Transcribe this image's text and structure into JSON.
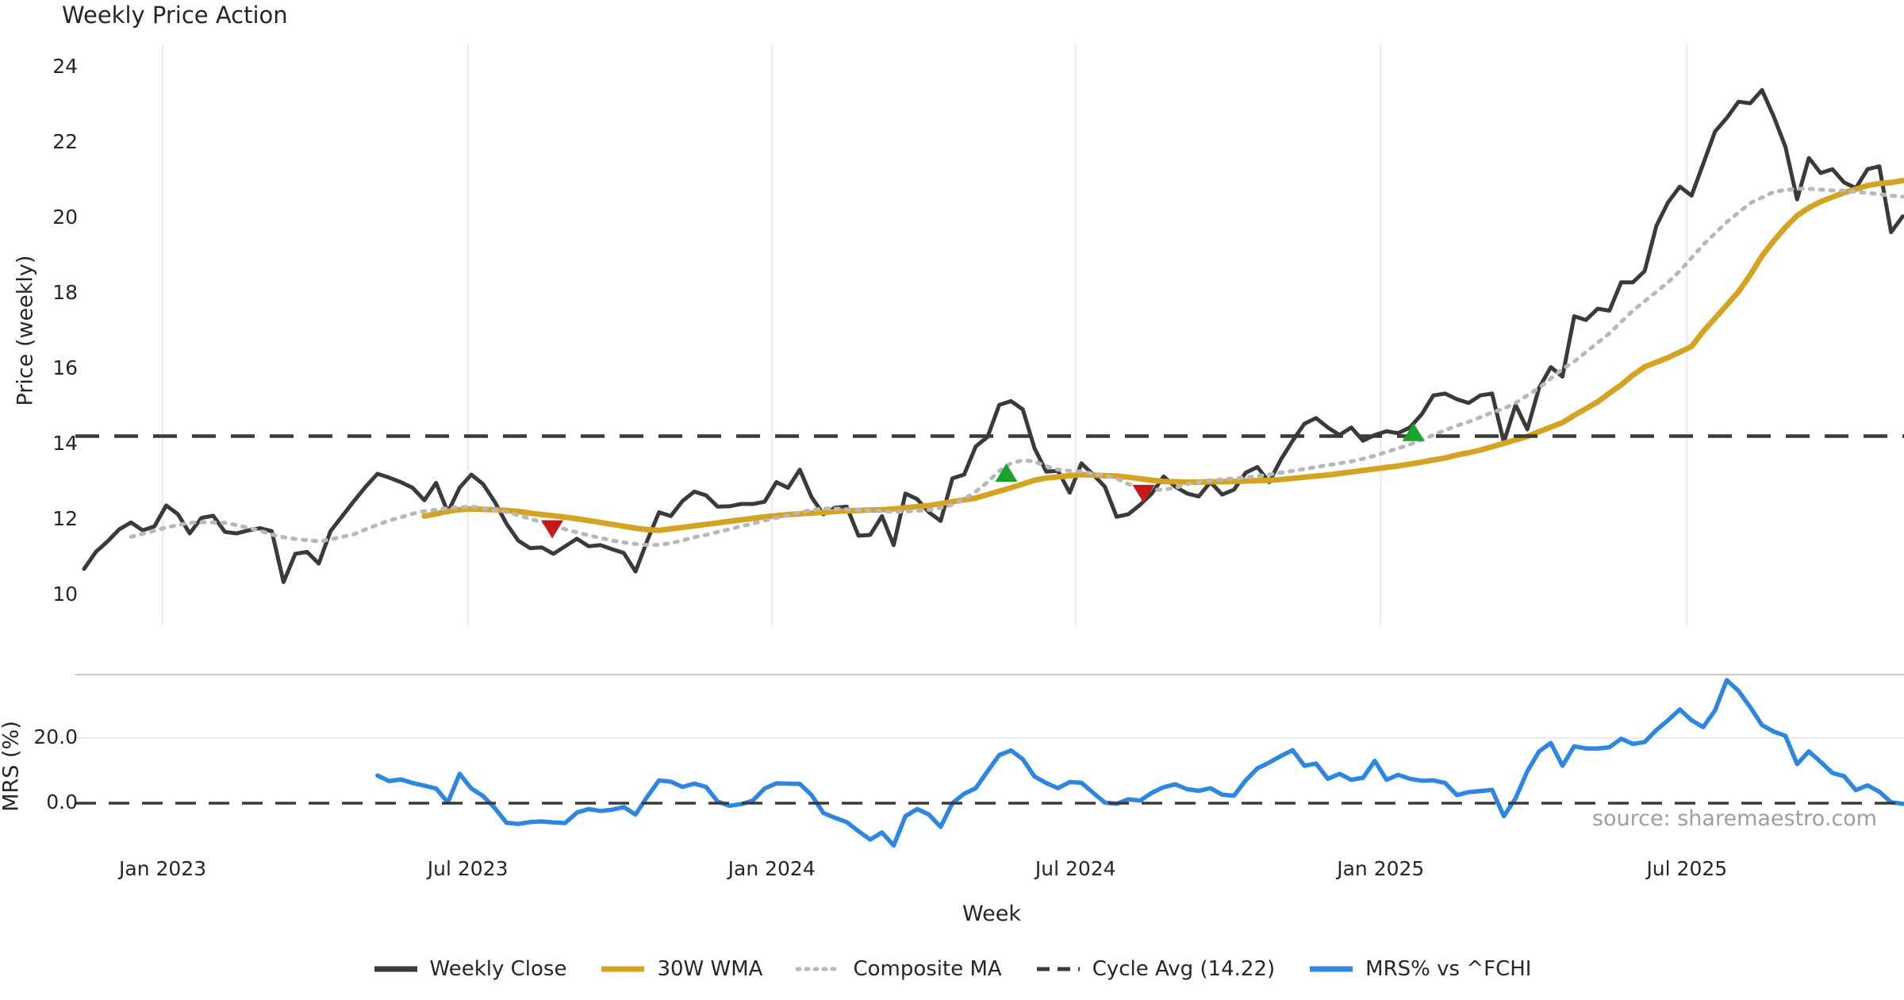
{
  "title": "Weekly Price Action",
  "source": "source: sharemaestro.com",
  "legend": [
    {
      "label": "Weekly Close",
      "color": "#3a3a3a",
      "style": "solid"
    },
    {
      "label": "30W WMA",
      "color": "#d5a322",
      "style": "solid"
    },
    {
      "label": "Composite MA",
      "color": "#b8b8b8",
      "style": "dotted"
    },
    {
      "label": "Cycle Avg (14.22)",
      "color": "#3a3a3a",
      "style": "dashed"
    },
    {
      "label": "MRS% vs ^FCHI",
      "color": "#2d87e2",
      "style": "solid"
    }
  ],
  "chart_data": {
    "type": "line",
    "n_weeks": 156,
    "x_axis": {
      "label": "Week",
      "ticks": [
        {
          "label": "Jan 2023",
          "week": 6.7
        },
        {
          "label": "Jul 2023",
          "week": 32.7
        },
        {
          "label": "Jan 2024",
          "week": 58.6
        },
        {
          "label": "Jul 2024",
          "week": 84.5
        },
        {
          "label": "Jan 2025",
          "week": 110.5
        },
        {
          "label": "Jul 2025",
          "week": 136.6
        }
      ]
    },
    "price_axis": {
      "label": "Price (weekly)",
      "ticks": [
        24,
        22,
        20,
        18,
        16,
        14,
        12,
        10
      ],
      "range": [
        9.2,
        24.6
      ]
    },
    "mrs_axis": {
      "label": "MRS (%)",
      "ticks": [
        {
          "label": "20.0",
          "value": 20
        },
        {
          "label": "0.0",
          "value": 0
        }
      ],
      "range": [
        -16,
        40
      ]
    },
    "cycle_avg": 14.22,
    "series": [
      {
        "name": "Weekly Close",
        "panel": "price",
        "style": "solid",
        "color": "#3a3a3a",
        "width": 5,
        "start": 0,
        "values": [
          10.7,
          11.15,
          11.43,
          11.75,
          11.93,
          11.72,
          11.83,
          12.38,
          12.15,
          11.64,
          12.05,
          12.11,
          11.68,
          11.64,
          11.72,
          11.78,
          11.7,
          10.35,
          11.1,
          11.15,
          10.84,
          11.7,
          12.1,
          12.5,
          12.88,
          13.22,
          13.12,
          13.0,
          12.85,
          12.52,
          12.98,
          12.2,
          12.85,
          13.2,
          12.95,
          12.48,
          11.9,
          11.45,
          11.25,
          11.27,
          11.1,
          11.3,
          11.5,
          11.3,
          11.33,
          11.22,
          11.12,
          10.63,
          11.45,
          12.2,
          12.1,
          12.5,
          12.75,
          12.65,
          12.35,
          12.36,
          12.42,
          12.42,
          12.48,
          13.0,
          12.85,
          13.33,
          12.6,
          12.15,
          12.32,
          12.35,
          11.58,
          11.6,
          12.1,
          11.33,
          12.7,
          12.55,
          12.2,
          11.97,
          13.1,
          13.2,
          13.95,
          14.2,
          15.05,
          15.15,
          14.93,
          13.9,
          13.28,
          13.3,
          12.72,
          13.5,
          13.2,
          12.88,
          12.08,
          12.15,
          12.4,
          12.7,
          13.15,
          12.88,
          12.7,
          12.62,
          13.0,
          12.67,
          12.8,
          13.25,
          13.4,
          13.0,
          13.6,
          14.1,
          14.55,
          14.7,
          14.45,
          14.25,
          14.45,
          14.1,
          14.25,
          14.35,
          14.3,
          14.45,
          14.8,
          15.3,
          15.35,
          15.2,
          15.1,
          15.3,
          15.35,
          14.06,
          15.05,
          14.4,
          15.5,
          16.05,
          15.8,
          17.4,
          17.3,
          17.6,
          17.55,
          18.3,
          18.3,
          18.6,
          19.8,
          20.42,
          20.84,
          20.6,
          21.45,
          22.3,
          22.66,
          23.09,
          23.05,
          23.4,
          22.7,
          21.9,
          20.5,
          21.6,
          21.2,
          21.3,
          20.95,
          20.8,
          21.3,
          21.38,
          19.63,
          20.05
        ]
      },
      {
        "name": "30W WMA",
        "panel": "price",
        "style": "solid",
        "color": "#d5a322",
        "width": 7,
        "start": 29,
        "values": [
          12.1,
          12.16,
          12.23,
          12.27,
          12.29,
          12.28,
          12.27,
          12.25,
          12.22,
          12.18,
          12.14,
          12.11,
          12.07,
          12.03,
          11.98,
          11.93,
          11.88,
          11.83,
          11.78,
          11.74,
          11.72,
          11.76,
          11.8,
          11.84,
          11.88,
          11.92,
          11.96,
          12.0,
          12.04,
          12.08,
          12.11,
          12.14,
          12.16,
          12.18,
          12.2,
          12.22,
          12.24,
          12.25,
          12.26,
          12.27,
          12.29,
          12.32,
          12.35,
          12.38,
          12.43,
          12.48,
          12.53,
          12.58,
          12.67,
          12.76,
          12.85,
          12.95,
          13.05,
          13.11,
          13.14,
          13.17,
          13.2,
          13.19,
          13.17,
          13.16,
          13.13,
          13.09,
          13.05,
          13.02,
          13.01,
          13.0,
          13.0,
          13.01,
          13.01,
          13.02,
          13.03,
          13.04,
          13.05,
          13.07,
          13.1,
          13.13,
          13.16,
          13.19,
          13.23,
          13.27,
          13.31,
          13.35,
          13.39,
          13.43,
          13.48,
          13.53,
          13.59,
          13.64,
          13.72,
          13.78,
          13.85,
          13.94,
          14.03,
          14.12,
          14.21,
          14.34,
          14.46,
          14.58,
          14.77,
          14.95,
          15.13,
          15.36,
          15.58,
          15.84,
          16.06,
          16.18,
          16.3,
          16.45,
          16.6,
          17.0,
          17.35,
          17.7,
          18.05,
          18.5,
          19.0,
          19.4,
          19.76,
          20.07,
          20.28,
          20.44,
          20.56,
          20.68,
          20.77,
          20.87,
          20.92,
          20.95,
          21.0
        ]
      },
      {
        "name": "Composite MA",
        "panel": "price",
        "style": "dotted",
        "color": "#b8b8b8",
        "width": 5,
        "start": 4,
        "values": [
          11.55,
          11.63,
          11.71,
          11.8,
          11.86,
          11.92,
          11.94,
          11.93,
          11.92,
          11.86,
          11.79,
          11.71,
          11.61,
          11.54,
          11.49,
          11.46,
          11.43,
          11.48,
          11.55,
          11.62,
          11.75,
          11.87,
          11.98,
          12.07,
          12.16,
          12.23,
          12.27,
          12.31,
          12.33,
          12.35,
          12.31,
          12.26,
          12.21,
          12.12,
          12.03,
          11.94,
          11.85,
          11.75,
          11.67,
          11.59,
          11.52,
          11.45,
          11.4,
          11.36,
          11.33,
          11.34,
          11.38,
          11.45,
          11.54,
          11.6,
          11.68,
          11.75,
          11.83,
          11.9,
          11.98,
          12.05,
          12.12,
          12.2,
          12.26,
          12.3,
          12.3,
          12.28,
          12.26,
          12.25,
          12.23,
          12.21,
          12.22,
          12.24,
          12.26,
          12.32,
          12.4,
          12.55,
          12.75,
          13.0,
          13.3,
          13.5,
          13.58,
          13.55,
          13.42,
          13.33,
          13.3,
          13.28,
          13.22,
          13.18,
          13.1,
          12.95,
          12.85,
          12.8,
          12.8,
          12.85,
          12.95,
          13.0,
          13.05,
          13.07,
          13.1,
          13.12,
          13.16,
          13.2,
          13.25,
          13.3,
          13.35,
          13.4,
          13.45,
          13.5,
          13.55,
          13.62,
          13.7,
          13.8,
          13.9,
          14.0,
          14.12,
          14.25,
          14.38,
          14.5,
          14.6,
          14.72,
          14.85,
          14.95,
          15.1,
          15.3,
          15.5,
          15.75,
          16.0,
          16.2,
          16.45,
          16.7,
          16.95,
          17.25,
          17.55,
          17.8,
          18.05,
          18.3,
          18.6,
          18.95,
          19.3,
          19.6,
          19.9,
          20.15,
          20.4,
          20.55,
          20.7,
          20.75,
          20.78,
          20.78,
          20.76,
          20.74,
          20.73,
          20.7,
          20.67,
          20.64,
          20.6,
          20.57
        ]
      },
      {
        "name": "Cycle Avg (14.22)",
        "panel": "price",
        "style": "dashed",
        "color": "#3a3a3a",
        "width": 4.5,
        "constant": 14.22
      },
      {
        "name": "MRS% vs ^FCHI",
        "panel": "mrs",
        "style": "solid",
        "color": "#2d87e2",
        "width": 5.5,
        "start": 25,
        "values": [
          8.5,
          6.8,
          7.3,
          6.2,
          5.4,
          4.5,
          0.2,
          9.0,
          4.5,
          2.2,
          -1.5,
          -6.0,
          -6.4,
          -5.8,
          -5.6,
          -5.9,
          -6.1,
          -2.9,
          -1.8,
          -2.4,
          -2.0,
          -1.2,
          -3.5,
          2.0,
          7.0,
          6.6,
          5.0,
          6.0,
          5.0,
          0.5,
          -0.8,
          -0.3,
          0.8,
          4.5,
          6.1,
          6.0,
          5.9,
          2.5,
          -3.0,
          -4.5,
          -5.8,
          -8.6,
          -11.2,
          -9.0,
          -13.0,
          -4.0,
          -1.8,
          -3.5,
          -7.3,
          0.0,
          2.9,
          4.6,
          9.8,
          14.8,
          16.2,
          13.5,
          8.2,
          6.2,
          4.6,
          6.5,
          6.3,
          3.2,
          0.2,
          -0.2,
          1.2,
          0.8,
          3.2,
          4.9,
          5.8,
          4.3,
          3.8,
          4.6,
          2.6,
          2.3,
          7.0,
          10.7,
          12.5,
          14.5,
          16.3,
          11.5,
          12.2,
          7.5,
          9.0,
          7.2,
          7.8,
          13.0,
          7.2,
          8.7,
          7.5,
          6.9,
          7.0,
          6.2,
          2.5,
          3.4,
          3.7,
          4.1,
          -4.0,
          1.5,
          9.8,
          15.9,
          18.5,
          11.5,
          17.5,
          16.8,
          16.8,
          17.2,
          19.8,
          18.2,
          18.8,
          22.5,
          25.5,
          28.8,
          25.5,
          23.4,
          28.5,
          37.8,
          34.5,
          29.5,
          24.0,
          22.0,
          20.7,
          12.0,
          15.9,
          12.7,
          9.3,
          8.3,
          4.0,
          5.5,
          3.5,
          0.3,
          -0.2
        ]
      }
    ],
    "signals": {
      "buy": {
        "color": "#1aa22c",
        "shape": "triangle-up",
        "points": [
          {
            "week": 78.6,
            "value": 13.2
          },
          {
            "week": 113.3,
            "value": 14.28
          }
        ]
      },
      "sell": {
        "color": "#c41a1a",
        "shape": "triangle-down",
        "points": [
          {
            "week": 39.9,
            "value": 11.8
          },
          {
            "week": 90.3,
            "value": 12.74
          }
        ]
      }
    }
  }
}
